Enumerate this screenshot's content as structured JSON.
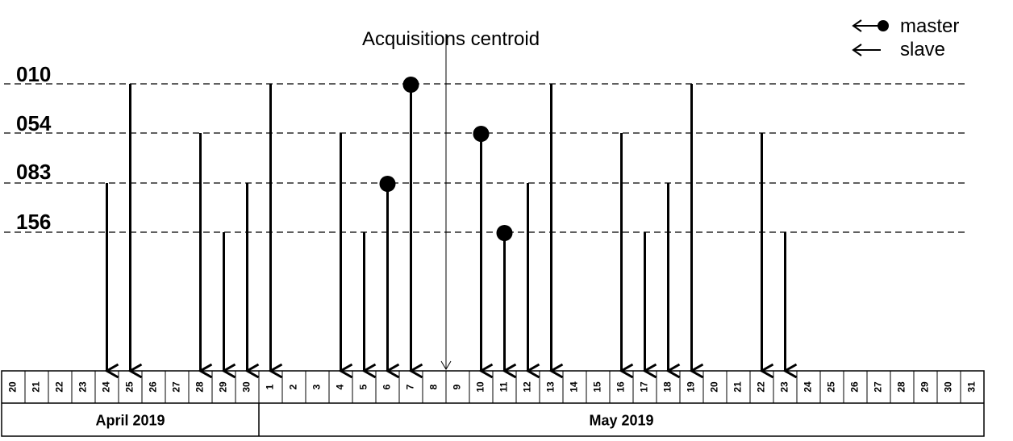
{
  "chart_data": {
    "type": "timeline",
    "tracks": [
      "010",
      "054",
      "083",
      "156"
    ],
    "centroid_label": "Acquisitions centroid",
    "centroid_between": [
      "2019-05-08",
      "2019-05-09"
    ],
    "legend": {
      "master": "master",
      "slave": "slave"
    },
    "months": [
      {
        "label": "April 2019",
        "days": [
          20,
          21,
          22,
          23,
          24,
          25,
          26,
          27,
          28,
          29,
          30
        ]
      },
      {
        "label": "May 2019",
        "days": [
          1,
          2,
          3,
          4,
          5,
          6,
          7,
          8,
          9,
          10,
          11,
          12,
          13,
          14,
          15,
          16,
          17,
          18,
          19,
          20,
          21,
          22,
          23,
          24,
          25,
          26,
          27,
          28,
          29,
          30,
          31
        ]
      }
    ],
    "acquisitions": [
      {
        "date": "2019-04-24",
        "track": "083",
        "role": "slave"
      },
      {
        "date": "2019-04-25",
        "track": "010",
        "role": "slave"
      },
      {
        "date": "2019-04-28",
        "track": "054",
        "role": "slave"
      },
      {
        "date": "2019-04-29",
        "track": "156",
        "role": "slave"
      },
      {
        "date": "2019-04-30",
        "track": "083",
        "role": "slave"
      },
      {
        "date": "2019-05-01",
        "track": "010",
        "role": "slave"
      },
      {
        "date": "2019-05-04",
        "track": "054",
        "role": "slave"
      },
      {
        "date": "2019-05-05",
        "track": "156",
        "role": "slave"
      },
      {
        "date": "2019-05-06",
        "track": "083",
        "role": "master"
      },
      {
        "date": "2019-05-07",
        "track": "010",
        "role": "master"
      },
      {
        "date": "2019-05-10",
        "track": "054",
        "role": "master"
      },
      {
        "date": "2019-05-11",
        "track": "156",
        "role": "master"
      },
      {
        "date": "2019-05-12",
        "track": "083",
        "role": "slave"
      },
      {
        "date": "2019-05-13",
        "track": "010",
        "role": "slave"
      },
      {
        "date": "2019-05-16",
        "track": "054",
        "role": "slave"
      },
      {
        "date": "2019-05-17",
        "track": "156",
        "role": "slave"
      },
      {
        "date": "2019-05-18",
        "track": "083",
        "role": "slave"
      },
      {
        "date": "2019-05-19",
        "track": "010",
        "role": "slave"
      },
      {
        "date": "2019-05-22",
        "track": "054",
        "role": "slave"
      },
      {
        "date": "2019-05-23",
        "track": "156",
        "role": "slave"
      }
    ]
  }
}
